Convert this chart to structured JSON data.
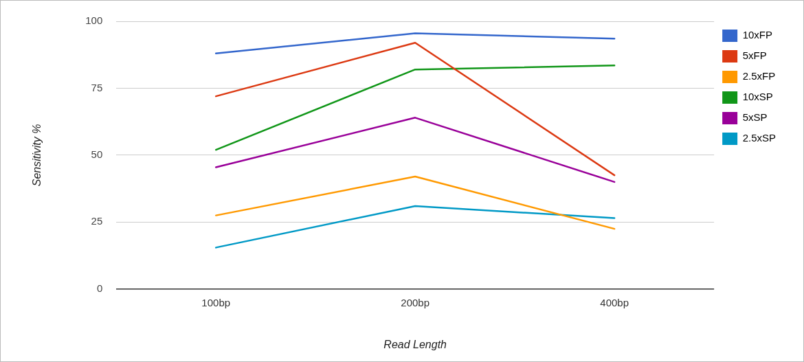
{
  "chart_data": {
    "type": "line",
    "xlabel": "Read Length",
    "ylabel": "Sensitivity %",
    "categories": [
      "100bp",
      "200bp",
      "400bp"
    ],
    "series": [
      {
        "name": "10xFP",
        "color": "#3366cc",
        "values": [
          88,
          95.5,
          93.5
        ]
      },
      {
        "name": "5xFP",
        "color": "#dc3912",
        "values": [
          72,
          92,
          42.5
        ]
      },
      {
        "name": "2.5xFP",
        "color": "#ff9900",
        "values": [
          27.5,
          42,
          22.5
        ]
      },
      {
        "name": "10xSP",
        "color": "#109618",
        "values": [
          52,
          82,
          83.5
        ]
      },
      {
        "name": "5xSP",
        "color": "#990099",
        "values": [
          45.5,
          64,
          40
        ]
      },
      {
        "name": "2.5xSP",
        "color": "#0099c6",
        "values": [
          15.5,
          31,
          26.5
        ]
      }
    ],
    "ylim": [
      0,
      100
    ],
    "yticks": [
      0,
      25,
      50,
      75,
      100
    ],
    "grid": "y",
    "legend": "top right",
    "marker": "none",
    "line_style": "solid"
  }
}
